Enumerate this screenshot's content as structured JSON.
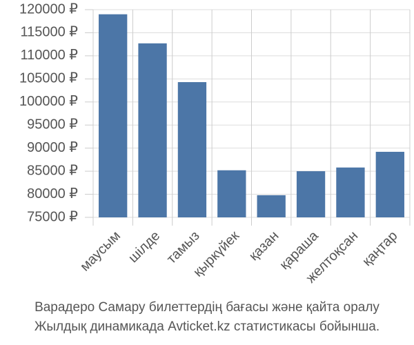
{
  "chart_data": {
    "type": "bar",
    "categories": [
      "маусым",
      "шілде",
      "тамыз",
      "қыркүйек",
      "қазан",
      "қараша",
      "желтоқсан",
      "қаңтар"
    ],
    "values": [
      119000,
      112700,
      104300,
      85200,
      79800,
      85000,
      85800,
      89200
    ],
    "color": "#4c76a7",
    "ylim": [
      75000,
      120000
    ],
    "yticks": [
      {
        "value": 75000,
        "label": "75000 ₽"
      },
      {
        "value": 80000,
        "label": "80000 ₽"
      },
      {
        "value": 85000,
        "label": "85000 ₽"
      },
      {
        "value": 90000,
        "label": "90000 ₽"
      },
      {
        "value": 95000,
        "label": "95000 ₽"
      },
      {
        "value": 100000,
        "label": "100000 ₽"
      },
      {
        "value": 105000,
        "label": "105000 ₽"
      },
      {
        "value": 110000,
        "label": "110000 ₽"
      },
      {
        "value": 115000,
        "label": "115000 ₽"
      },
      {
        "value": 120000,
        "label": "120000 ₽"
      }
    ],
    "grid": true,
    "caption": [
      "Варадеро Самару билеттердің бағасы және қайта оралу",
      "Жылдық динамикада Avticket.kz статистикасы бойынша."
    ]
  }
}
